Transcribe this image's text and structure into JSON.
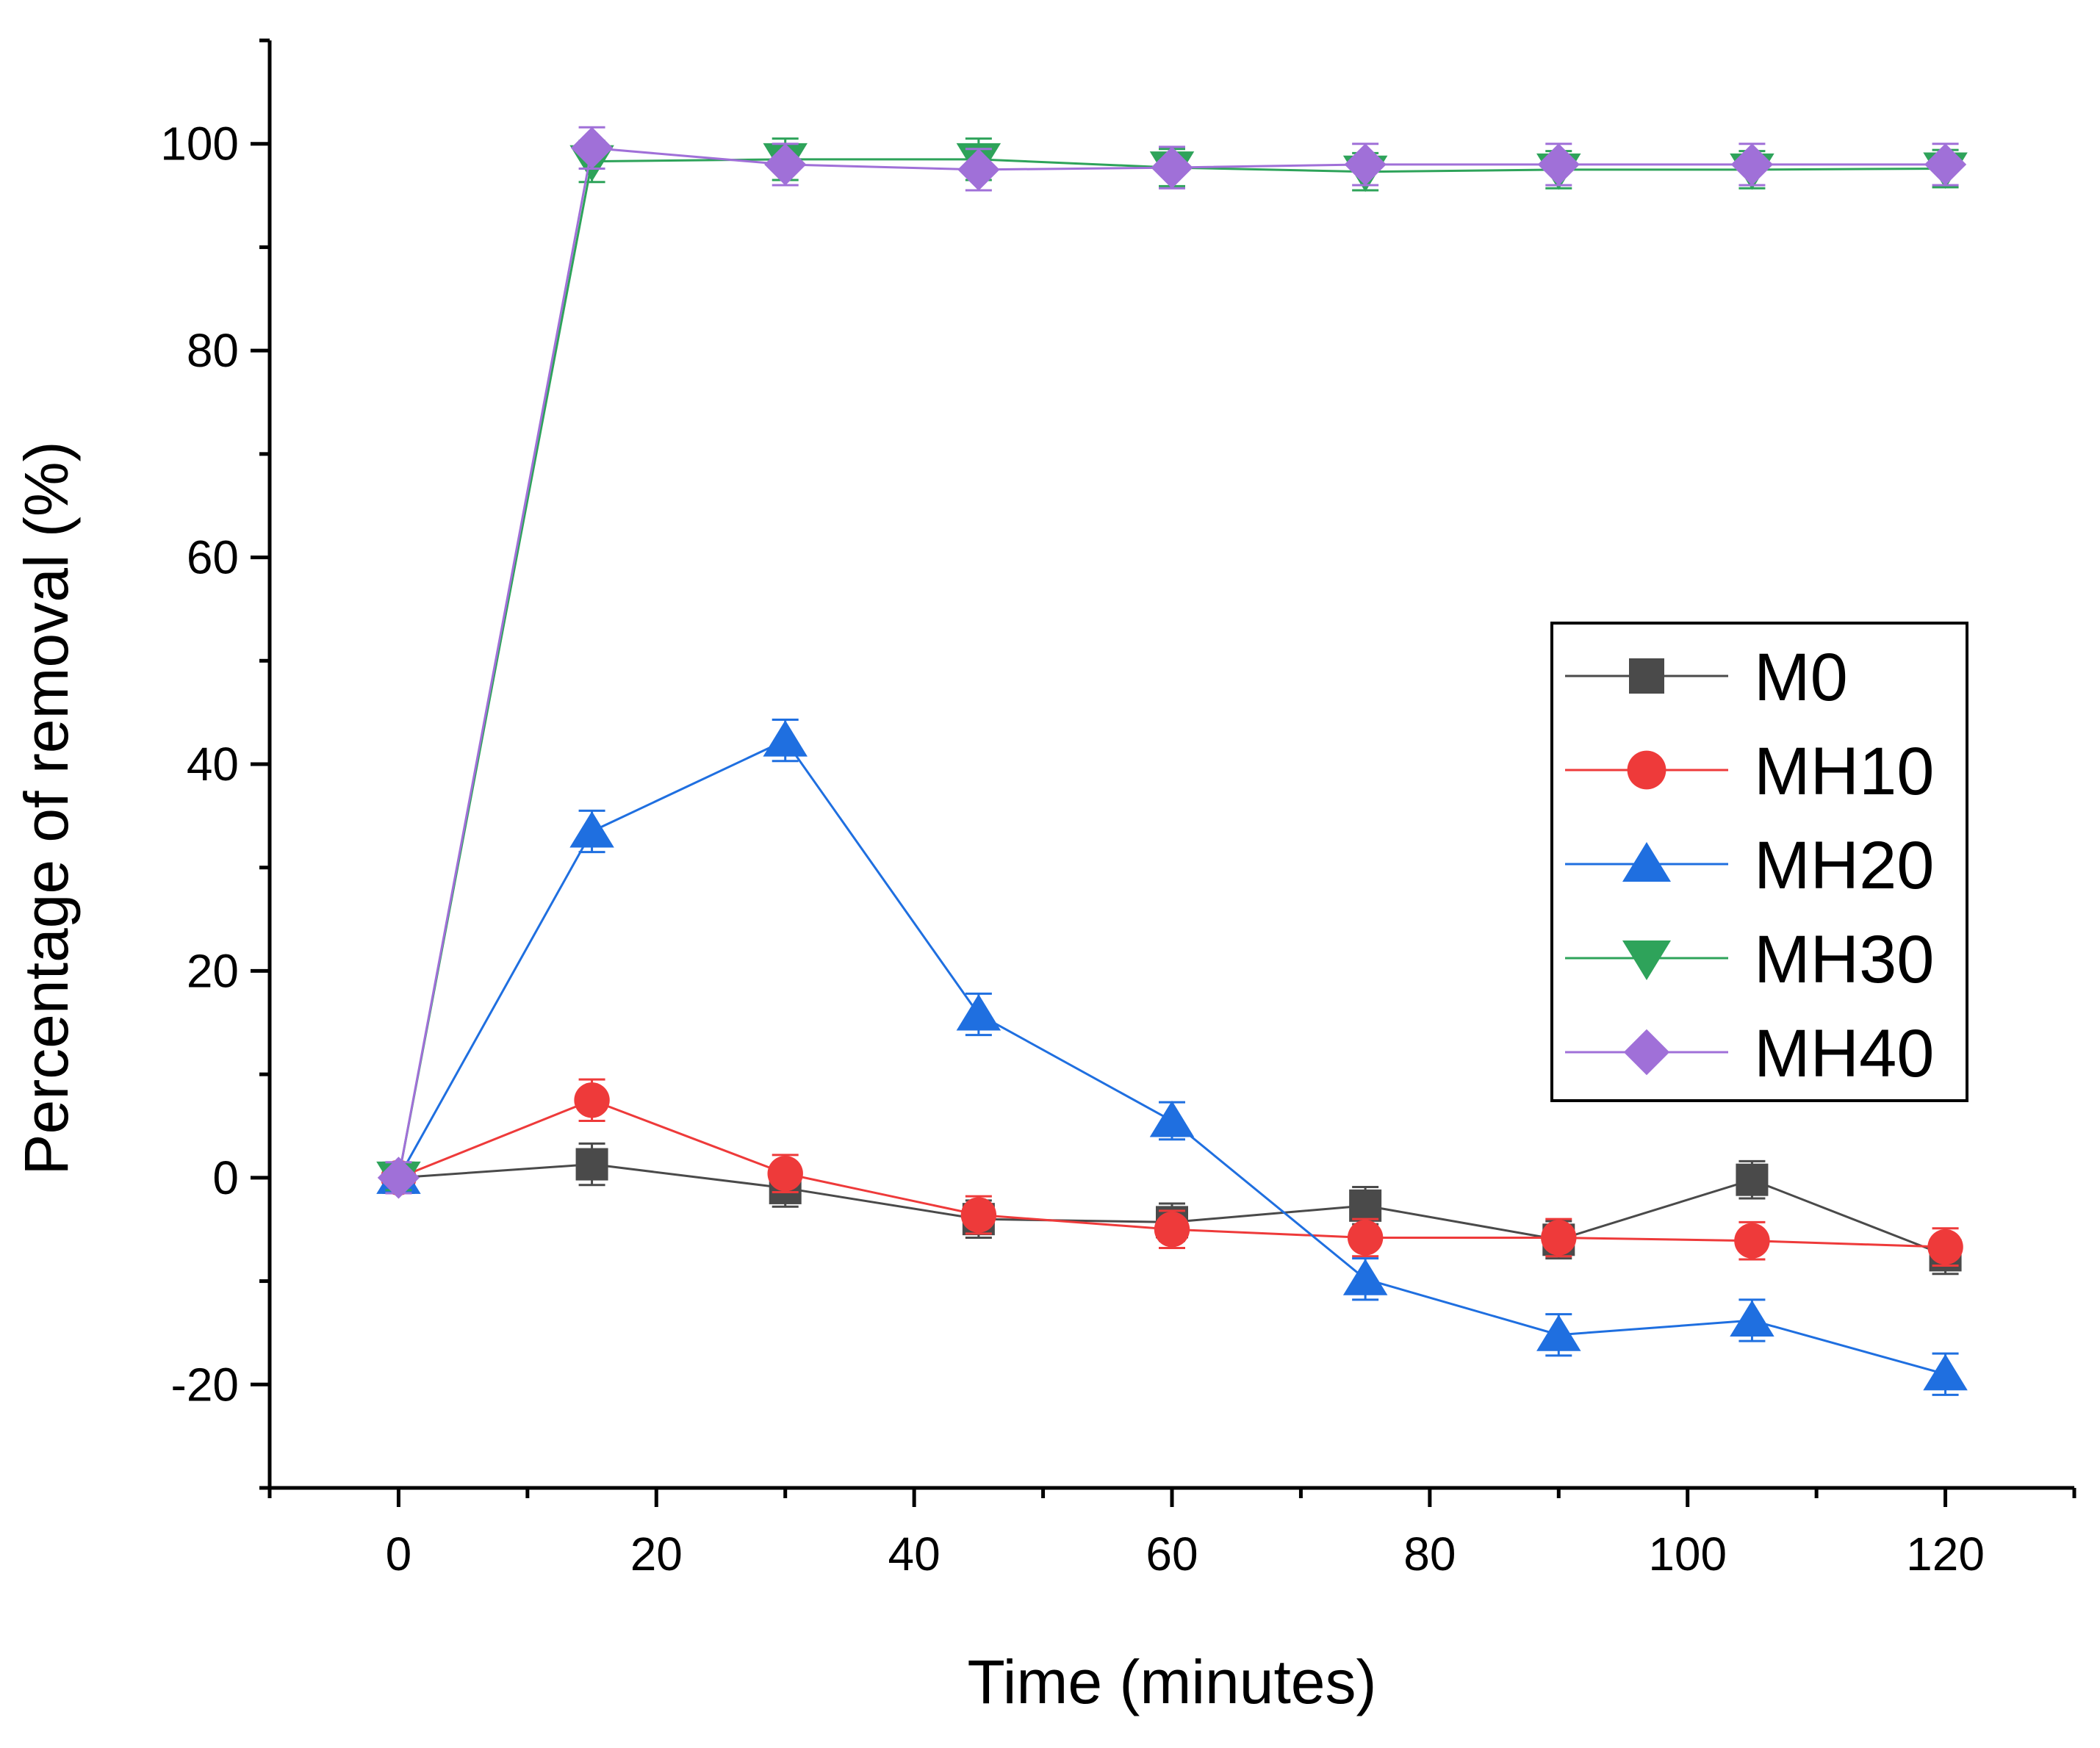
{
  "chart_data": {
    "type": "line",
    "title": "",
    "xlabel": "Time (minutes)",
    "ylabel": "Percentage of removal (%)",
    "xlim": [
      -10,
      130
    ],
    "ylim": [
      -30,
      110
    ],
    "xticks": [
      0,
      20,
      40,
      60,
      80,
      100,
      120
    ],
    "yticks": [
      -20,
      0,
      20,
      40,
      60,
      80,
      100
    ],
    "xtick_labels": [
      "0",
      "20",
      "40",
      "60",
      "80",
      "100",
      "120"
    ],
    "ytick_labels": [
      "-20",
      "0",
      "20",
      "40",
      "60",
      "80",
      "100"
    ],
    "x": [
      0,
      15,
      30,
      45,
      60,
      75,
      90,
      105,
      120
    ],
    "legend_position": "center-right",
    "series": [
      {
        "name": "M0",
        "marker": "square",
        "color": "#4a4a4a",
        "values": [
          0,
          1.3,
          -1.0,
          -4.0,
          -4.3,
          -2.7,
          -6.0,
          -0.2,
          -7.5
        ],
        "errors": [
          1.2,
          2.0,
          1.8,
          1.8,
          1.8,
          1.8,
          1.8,
          1.8,
          1.8
        ]
      },
      {
        "name": "MH10",
        "marker": "circle",
        "color": "#ee3a3a",
        "values": [
          0,
          7.5,
          0.4,
          -3.6,
          -5.0,
          -5.8,
          -5.8,
          -6.1,
          -6.7
        ],
        "errors": [
          1.2,
          2.0,
          1.8,
          1.8,
          1.8,
          1.8,
          1.8,
          1.8,
          1.8
        ]
      },
      {
        "name": "MH20",
        "marker": "triangle-up",
        "color": "#1f6fe0",
        "values": [
          0,
          33.5,
          42.3,
          15.8,
          5.5,
          -9.8,
          -15.2,
          -13.8,
          -19.0
        ],
        "errors": [
          1.2,
          2.0,
          2.0,
          2.0,
          1.8,
          2.0,
          2.0,
          2.0,
          2.0
        ]
      },
      {
        "name": "MH30",
        "marker": "triangle-down",
        "color": "#2ea35a",
        "values": [
          0,
          98.3,
          98.5,
          98.5,
          97.7,
          97.3,
          97.5,
          97.5,
          97.6
        ],
        "errors": [
          1.2,
          2.0,
          2.0,
          2.0,
          1.8,
          1.8,
          1.8,
          1.8,
          1.8
        ]
      },
      {
        "name": "MH40",
        "marker": "diamond",
        "color": "#a070d8",
        "values": [
          0,
          99.6,
          98.0,
          97.5,
          97.7,
          98.0,
          98.0,
          98.0,
          98.0
        ],
        "errors": [
          1.5,
          2.0,
          2.0,
          2.0,
          2.0,
          2.0,
          2.0,
          2.0,
          2.0
        ]
      }
    ]
  }
}
